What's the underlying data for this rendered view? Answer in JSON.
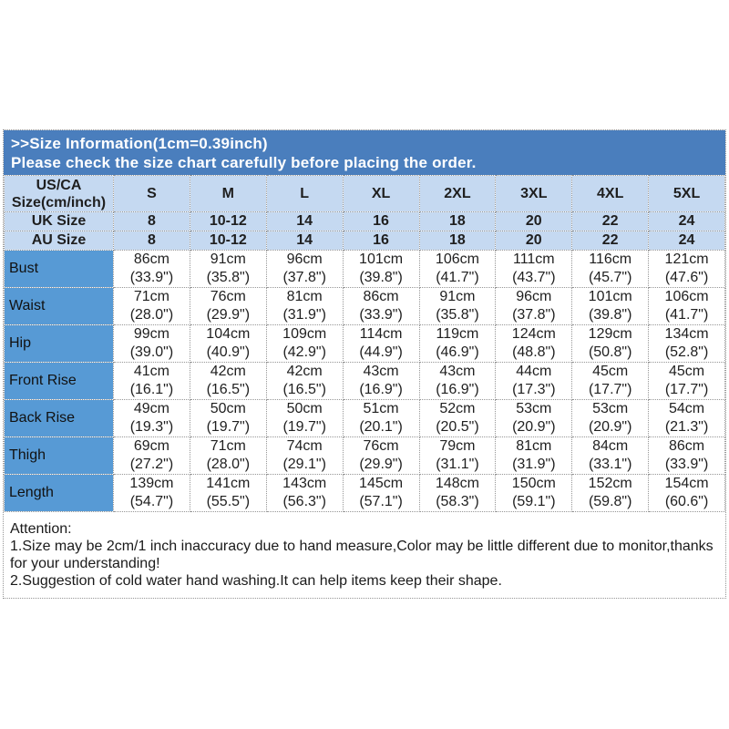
{
  "banner": {
    "line1": ">>Size Information(1cm=0.39inch)",
    "line2": "Please check the size chart carefully before placing the order."
  },
  "table": {
    "corner": {
      "line1": "US/CA",
      "line2": "Size(cm/inch)"
    },
    "sizes": [
      "S",
      "M",
      "L",
      "XL",
      "2XL",
      "3XL",
      "4XL",
      "5XL"
    ],
    "size_rows": [
      {
        "label": "UK Size",
        "values": [
          "8",
          "10-12",
          "14",
          "16",
          "18",
          "20",
          "22",
          "24"
        ]
      },
      {
        "label": "AU Size",
        "values": [
          "8",
          "10-12",
          "14",
          "16",
          "18",
          "20",
          "22",
          "24"
        ]
      }
    ],
    "measurement_rows": [
      {
        "label": "Bust",
        "cm": [
          "86cm",
          "91cm",
          "96cm",
          "101cm",
          "106cm",
          "111cm",
          "116cm",
          "121cm"
        ],
        "inch": [
          "(33.9\")",
          "(35.8\")",
          "(37.8\")",
          "(39.8\")",
          "(41.7\")",
          "(43.7\")",
          "(45.7\")",
          "(47.6\")"
        ]
      },
      {
        "label": "Waist",
        "cm": [
          "71cm",
          "76cm",
          "81cm",
          "86cm",
          "91cm",
          "96cm",
          "101cm",
          "106cm"
        ],
        "inch": [
          "(28.0\")",
          "(29.9\")",
          "(31.9\")",
          "(33.9\")",
          "(35.8\")",
          "(37.8\")",
          "(39.8\")",
          "(41.7\")"
        ]
      },
      {
        "label": "Hip",
        "cm": [
          "99cm",
          "104cm",
          "109cm",
          "114cm",
          "119cm",
          "124cm",
          "129cm",
          "134cm"
        ],
        "inch": [
          "(39.0\")",
          "(40.9\")",
          "(42.9\")",
          "(44.9\")",
          "(46.9\")",
          "(48.8\")",
          "(50.8\")",
          "(52.8\")"
        ]
      },
      {
        "label": "Front Rise",
        "cm": [
          "41cm",
          "42cm",
          "42cm",
          "43cm",
          "43cm",
          "44cm",
          "45cm",
          "45cm"
        ],
        "inch": [
          "(16.1\")",
          "(16.5\")",
          "(16.5\")",
          "(16.9\")",
          "(16.9\")",
          "(17.3\")",
          "(17.7\")",
          "(17.7\")"
        ]
      },
      {
        "label": "Back Rise",
        "cm": [
          "49cm",
          "50cm",
          "50cm",
          "51cm",
          "52cm",
          "53cm",
          "53cm",
          "54cm"
        ],
        "inch": [
          "(19.3\")",
          "(19.7\")",
          "(19.7\")",
          "(20.1\")",
          "(20.5\")",
          "(20.9\")",
          "(20.9\")",
          "(21.3\")"
        ]
      },
      {
        "label": "Thigh",
        "cm": [
          "69cm",
          "71cm",
          "74cm",
          "76cm",
          "79cm",
          "81cm",
          "84cm",
          "86cm"
        ],
        "inch": [
          "(27.2\")",
          "(28.0\")",
          "(29.1\")",
          "(29.9\")",
          "(31.1\")",
          "(31.9\")",
          "(33.1\")",
          "(33.9\")"
        ]
      },
      {
        "label": "Length",
        "cm": [
          "139cm",
          "141cm",
          "143cm",
          "145cm",
          "148cm",
          "150cm",
          "152cm",
          "154cm"
        ],
        "inch": [
          "(54.7\")",
          "(55.5\")",
          "(56.3\")",
          "(57.1\")",
          "(58.3\")",
          "(59.1\")",
          "(59.8\")",
          "(60.6\")"
        ]
      }
    ]
  },
  "attention": {
    "title": "Attention:",
    "lines": [
      "1.Size may be 2cm/1 inch inaccuracy due to hand measure,Color may be little different due to monitor,thanks for your understanding!",
      "2.Suggestion of cold water hand washing.It can help items keep their shape."
    ]
  },
  "colors": {
    "banner_bg": "#4a7ebd",
    "header_bg": "#c5d9f1",
    "label_bg": "#579ad5",
    "border": "#969696",
    "banner_text": "#ffffff",
    "body_text": "#1f1f1f"
  }
}
